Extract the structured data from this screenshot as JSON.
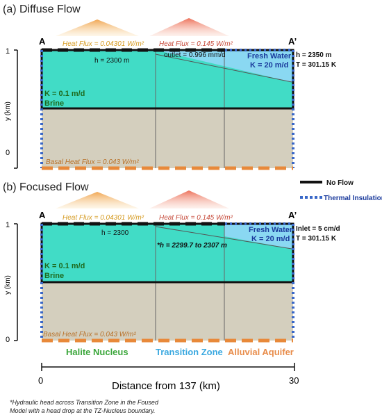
{
  "panel_a": {
    "title": "(a) Diffuse Flow",
    "label_left": "A",
    "label_right": "A’",
    "heat_flux_left": "Heat Flux = 0.04301 W/m²",
    "heat_flux_mid": "Heat Flux = 0.145 W/m²",
    "outlet": "outlet = 0.996 mm/d",
    "h_left": "h = 2300 m",
    "fresh_water": "Fresh Water",
    "k_fresh": "K = 20 m/d",
    "h_right": "h = 2350 m",
    "t_right": "T = 301.15 K",
    "k_brine": "K = 0.1 m/d",
    "brine": "Brine",
    "basal": "Basal Heat Flux = 0.043 W/m²",
    "y_axis_label": "y (km)",
    "y_tick_top": "1",
    "y_tick_bottom": "0"
  },
  "panel_b": {
    "title": "(b) Focused Flow",
    "label_left": "A",
    "label_right": "A’",
    "heat_flux_left": "Heat Flux = 0.04301 W/m²",
    "heat_flux_mid": "Heat Flux = 0.145 W/m²",
    "h_left": "h = 2300",
    "h_mid": "*h = 2299.7 to 2307 m",
    "fresh_water": "Fresh Water",
    "k_fresh": "K = 20 m/d",
    "inlet": "Inlet = 5 cm/d",
    "t_right": "T = 301.15 K",
    "k_brine": "K = 0.1 m/d",
    "brine": "Brine",
    "basal": "Basal Heat Flux = 0.043 W/m²",
    "y_axis_label": "y (km)",
    "y_tick_top": "1",
    "y_tick_bottom": "0"
  },
  "legend": {
    "no_flow": "No Flow",
    "thermal": "Thermal Insulation"
  },
  "zones": {
    "halite": "Halite Nucleus",
    "transition": "Transition Zone",
    "alluvial": "Alluvial Aquifer"
  },
  "x_axis": {
    "tick_left": "0",
    "tick_right": "30",
    "label": "Distance from 137 (km)"
  },
  "footnote": {
    "line1": "*Hydraulic head across Transition Zone in the Foused",
    "line2": "Model with a head drop at the TZ-Nucleus boundary."
  },
  "colors": {
    "brine": "#41dcc6",
    "fresh": "#8ad8f2",
    "sediment": "#d4cfbe",
    "insulation": "#3a68c8",
    "basal": "#e8893a",
    "no_flow": "#111111",
    "halite_text": "#3aa63a",
    "transition_text": "#3aa8e0",
    "alluvial_text": "#e88c4a"
  }
}
